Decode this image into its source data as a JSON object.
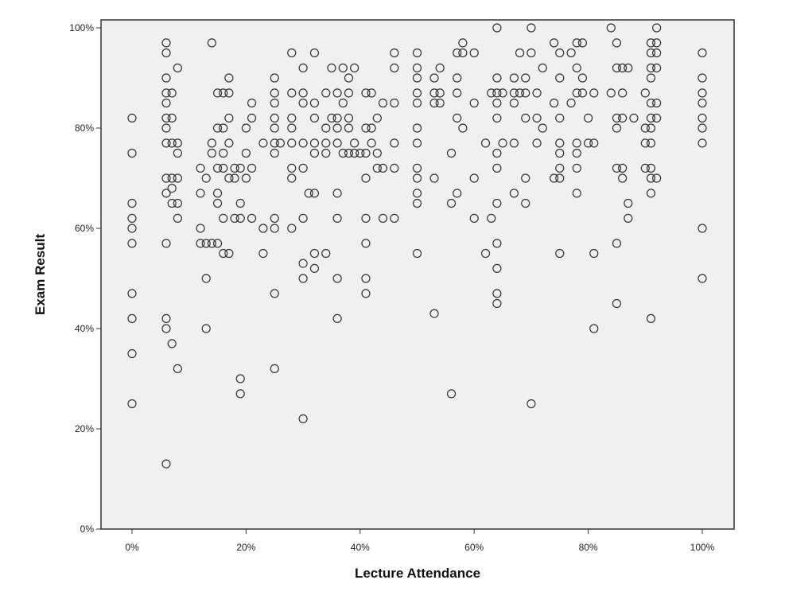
{
  "chart_data": {
    "type": "scatter",
    "title": "",
    "xlabel": "Lecture Attendance",
    "ylabel": "Exam Result",
    "xlim": [
      -5,
      105
    ],
    "ylim": [
      0,
      100
    ],
    "x_ticks": [
      0,
      20,
      40,
      60,
      80,
      100
    ],
    "x_tick_labels": [
      "0%",
      "20%",
      "40%",
      "60%",
      "80%",
      "100%"
    ],
    "y_ticks": [
      0,
      20,
      40,
      60,
      80,
      100
    ],
    "y_tick_labels": [
      "0%",
      "20%",
      "40%",
      "60%",
      "80%",
      "100%"
    ],
    "grid": false,
    "plot_background": "#f0f0f0",
    "marker": "open-circle",
    "marker_color": "#333333",
    "points": [
      [
        0,
        82
      ],
      [
        0,
        75
      ],
      [
        0,
        65
      ],
      [
        0,
        62
      ],
      [
        0,
        60
      ],
      [
        0,
        57
      ],
      [
        0,
        47
      ],
      [
        0,
        42
      ],
      [
        0,
        35
      ],
      [
        0,
        25
      ],
      [
        6,
        97
      ],
      [
        6,
        95
      ],
      [
        6,
        90
      ],
      [
        6,
        87
      ],
      [
        6,
        85
      ],
      [
        6,
        82
      ],
      [
        6,
        80
      ],
      [
        6,
        77
      ],
      [
        6,
        70
      ],
      [
        6,
        67
      ],
      [
        6,
        57
      ],
      [
        6,
        40
      ],
      [
        6,
        42
      ],
      [
        6,
        13
      ],
      [
        7,
        87
      ],
      [
        7,
        82
      ],
      [
        7,
        77
      ],
      [
        7,
        70
      ],
      [
        7,
        68
      ],
      [
        7,
        65
      ],
      [
        7,
        37
      ],
      [
        8,
        92
      ],
      [
        8,
        77
      ],
      [
        8,
        75
      ],
      [
        8,
        70
      ],
      [
        8,
        65
      ],
      [
        8,
        62
      ],
      [
        8,
        32
      ],
      [
        12,
        72
      ],
      [
        12,
        67
      ],
      [
        12,
        60
      ],
      [
        12,
        57
      ],
      [
        13,
        70
      ],
      [
        13,
        57
      ],
      [
        13,
        50
      ],
      [
        13,
        40
      ],
      [
        14,
        77
      ],
      [
        14,
        75
      ],
      [
        14,
        57
      ],
      [
        14,
        97
      ],
      [
        15,
        87
      ],
      [
        15,
        80
      ],
      [
        15,
        72
      ],
      [
        15,
        67
      ],
      [
        15,
        65
      ],
      [
        15,
        57
      ],
      [
        16,
        87
      ],
      [
        16,
        80
      ],
      [
        16,
        75
      ],
      [
        16,
        72
      ],
      [
        16,
        62
      ],
      [
        16,
        55
      ],
      [
        17,
        90
      ],
      [
        17,
        87
      ],
      [
        17,
        82
      ],
      [
        17,
        77
      ],
      [
        17,
        70
      ],
      [
        17,
        55
      ],
      [
        18,
        72
      ],
      [
        18,
        70
      ],
      [
        18,
        62
      ],
      [
        19,
        72
      ],
      [
        19,
        65
      ],
      [
        19,
        62
      ],
      [
        19,
        30
      ],
      [
        19,
        27
      ],
      [
        20,
        80
      ],
      [
        20,
        75
      ],
      [
        20,
        70
      ],
      [
        21,
        85
      ],
      [
        21,
        82
      ],
      [
        21,
        72
      ],
      [
        21,
        62
      ],
      [
        23,
        77
      ],
      [
        23,
        60
      ],
      [
        23,
        55
      ],
      [
        25,
        90
      ],
      [
        25,
        87
      ],
      [
        25,
        85
      ],
      [
        25,
        82
      ],
      [
        25,
        80
      ],
      [
        25,
        77
      ],
      [
        25,
        75
      ],
      [
        25,
        62
      ],
      [
        25,
        60
      ],
      [
        25,
        47
      ],
      [
        25,
        32
      ],
      [
        26,
        77
      ],
      [
        28,
        95
      ],
      [
        28,
        87
      ],
      [
        28,
        82
      ],
      [
        28,
        80
      ],
      [
        28,
        77
      ],
      [
        28,
        72
      ],
      [
        28,
        70
      ],
      [
        28,
        60
      ],
      [
        30,
        92
      ],
      [
        30,
        87
      ],
      [
        30,
        85
      ],
      [
        30,
        77
      ],
      [
        30,
        72
      ],
      [
        30,
        62
      ],
      [
        30,
        53
      ],
      [
        30,
        50
      ],
      [
        30,
        22
      ],
      [
        31,
        67
      ],
      [
        32,
        95
      ],
      [
        32,
        85
      ],
      [
        32,
        82
      ],
      [
        32,
        77
      ],
      [
        32,
        75
      ],
      [
        32,
        67
      ],
      [
        32,
        55
      ],
      [
        32,
        52
      ],
      [
        34,
        87
      ],
      [
        34,
        80
      ],
      [
        34,
        77
      ],
      [
        34,
        75
      ],
      [
        34,
        55
      ],
      [
        35,
        92
      ],
      [
        35,
        82
      ],
      [
        36,
        87
      ],
      [
        36,
        82
      ],
      [
        36,
        80
      ],
      [
        36,
        77
      ],
      [
        36,
        67
      ],
      [
        36,
        62
      ],
      [
        36,
        50
      ],
      [
        36,
        42
      ],
      [
        37,
        92
      ],
      [
        37,
        85
      ],
      [
        37,
        75
      ],
      [
        38,
        90
      ],
      [
        38,
        87
      ],
      [
        38,
        82
      ],
      [
        38,
        80
      ],
      [
        38,
        75
      ],
      [
        39,
        92
      ],
      [
        39,
        77
      ],
      [
        39,
        75
      ],
      [
        40,
        75
      ],
      [
        41,
        87
      ],
      [
        41,
        80
      ],
      [
        41,
        75
      ],
      [
        41,
        70
      ],
      [
        41,
        62
      ],
      [
        41,
        57
      ],
      [
        41,
        50
      ],
      [
        41,
        47
      ],
      [
        42,
        87
      ],
      [
        42,
        80
      ],
      [
        42,
        77
      ],
      [
        43,
        82
      ],
      [
        43,
        75
      ],
      [
        43,
        72
      ],
      [
        44,
        85
      ],
      [
        44,
        72
      ],
      [
        44,
        62
      ],
      [
        46,
        95
      ],
      [
        46,
        92
      ],
      [
        46,
        85
      ],
      [
        46,
        77
      ],
      [
        46,
        72
      ],
      [
        46,
        62
      ],
      [
        50,
        95
      ],
      [
        50,
        92
      ],
      [
        50,
        90
      ],
      [
        50,
        87
      ],
      [
        50,
        85
      ],
      [
        50,
        80
      ],
      [
        50,
        77
      ],
      [
        50,
        72
      ],
      [
        50,
        70
      ],
      [
        50,
        67
      ],
      [
        50,
        65
      ],
      [
        50,
        55
      ],
      [
        53,
        90
      ],
      [
        53,
        87
      ],
      [
        53,
        85
      ],
      [
        53,
        70
      ],
      [
        53,
        43
      ],
      [
        54,
        92
      ],
      [
        54,
        87
      ],
      [
        54,
        85
      ],
      [
        56,
        75
      ],
      [
        56,
        65
      ],
      [
        56,
        27
      ],
      [
        57,
        95
      ],
      [
        57,
        90
      ],
      [
        57,
        87
      ],
      [
        57,
        82
      ],
      [
        57,
        67
      ],
      [
        58,
        97
      ],
      [
        58,
        95
      ],
      [
        58,
        80
      ],
      [
        60,
        95
      ],
      [
        60,
        85
      ],
      [
        60,
        70
      ],
      [
        60,
        62
      ],
      [
        62,
        77
      ],
      [
        62,
        55
      ],
      [
        63,
        87
      ],
      [
        63,
        62
      ],
      [
        64,
        100
      ],
      [
        64,
        90
      ],
      [
        64,
        87
      ],
      [
        64,
        85
      ],
      [
        64,
        82
      ],
      [
        64,
        75
      ],
      [
        64,
        72
      ],
      [
        64,
        65
      ],
      [
        64,
        57
      ],
      [
        64,
        52
      ],
      [
        64,
        47
      ],
      [
        64,
        45
      ],
      [
        65,
        87
      ],
      [
        65,
        77
      ],
      [
        67,
        90
      ],
      [
        67,
        87
      ],
      [
        67,
        85
      ],
      [
        67,
        77
      ],
      [
        67,
        67
      ],
      [
        68,
        95
      ],
      [
        68,
        87
      ],
      [
        69,
        90
      ],
      [
        69,
        87
      ],
      [
        69,
        82
      ],
      [
        69,
        70
      ],
      [
        69,
        65
      ],
      [
        70,
        100
      ],
      [
        70,
        95
      ],
      [
        70,
        25
      ],
      [
        71,
        87
      ],
      [
        71,
        82
      ],
      [
        71,
        77
      ],
      [
        72,
        92
      ],
      [
        72,
        80
      ],
      [
        74,
        97
      ],
      [
        74,
        85
      ],
      [
        74,
        70
      ],
      [
        75,
        95
      ],
      [
        75,
        90
      ],
      [
        75,
        82
      ],
      [
        75,
        77
      ],
      [
        75,
        75
      ],
      [
        75,
        72
      ],
      [
        75,
        70
      ],
      [
        75,
        55
      ],
      [
        77,
        95
      ],
      [
        77,
        85
      ],
      [
        78,
        97
      ],
      [
        78,
        92
      ],
      [
        78,
        87
      ],
      [
        78,
        77
      ],
      [
        78,
        75
      ],
      [
        78,
        72
      ],
      [
        78,
        67
      ],
      [
        79,
        97
      ],
      [
        79,
        90
      ],
      [
        79,
        87
      ],
      [
        80,
        82
      ],
      [
        80,
        77
      ],
      [
        81,
        87
      ],
      [
        81,
        77
      ],
      [
        81,
        55
      ],
      [
        81,
        40
      ],
      [
        84,
        100
      ],
      [
        84,
        87
      ],
      [
        85,
        97
      ],
      [
        85,
        92
      ],
      [
        85,
        82
      ],
      [
        85,
        80
      ],
      [
        85,
        72
      ],
      [
        85,
        57
      ],
      [
        85,
        45
      ],
      [
        86,
        92
      ],
      [
        86,
        87
      ],
      [
        86,
        82
      ],
      [
        86,
        72
      ],
      [
        86,
        70
      ],
      [
        87,
        92
      ],
      [
        87,
        65
      ],
      [
        87,
        62
      ],
      [
        88,
        82
      ],
      [
        90,
        87
      ],
      [
        90,
        80
      ],
      [
        90,
        77
      ],
      [
        90,
        72
      ],
      [
        91,
        97
      ],
      [
        91,
        95
      ],
      [
        91,
        92
      ],
      [
        91,
        90
      ],
      [
        91,
        85
      ],
      [
        91,
        82
      ],
      [
        91,
        80
      ],
      [
        91,
        77
      ],
      [
        91,
        72
      ],
      [
        91,
        70
      ],
      [
        91,
        67
      ],
      [
        91,
        42
      ],
      [
        92,
        100
      ],
      [
        92,
        97
      ],
      [
        92,
        95
      ],
      [
        92,
        92
      ],
      [
        92,
        85
      ],
      [
        92,
        82
      ],
      [
        92,
        70
      ],
      [
        100,
        95
      ],
      [
        100,
        90
      ],
      [
        100,
        87
      ],
      [
        100,
        85
      ],
      [
        100,
        82
      ],
      [
        100,
        80
      ],
      [
        100,
        77
      ],
      [
        100,
        60
      ],
      [
        100,
        50
      ]
    ]
  }
}
